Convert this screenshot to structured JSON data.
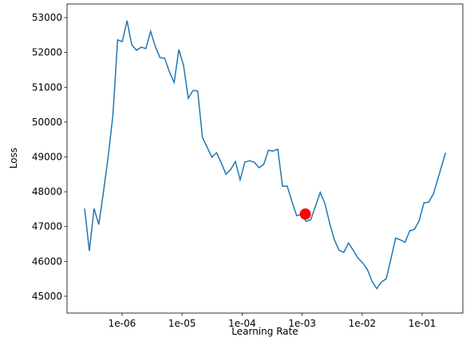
{
  "chart_data": {
    "type": "line",
    "x_label": "Learning Rate",
    "y_label": "Loss",
    "x_scale": "log",
    "x": [
      2.377e-07,
      2.848e-07,
      3.412e-07,
      4.088e-07,
      4.898e-07,
      5.868e-07,
      7.031e-07,
      8.424e-07,
      1.009e-06,
      1.209e-06,
      1.449e-06,
      1.736e-06,
      2.08e-06,
      2.492e-06,
      2.985e-06,
      3.577e-06,
      4.285e-06,
      5.134e-06,
      6.152e-06,
      7.371e-06,
      8.831e-06,
      1.058e-05,
      1.268e-05,
      1.519e-05,
      1.82e-05,
      2.181e-05,
      2.612e-05,
      3.13e-05,
      3.75e-05,
      4.493e-05,
      5.383e-05,
      6.45e-05,
      7.727e-05,
      9.259e-05,
      0.0001109,
      0.0001329,
      0.0001592,
      0.0001908,
      0.0002286,
      0.0002738,
      0.0003281,
      0.0003931,
      0.000471,
      0.0005643,
      0.0006761,
      0.0008101,
      0.0009705,
      0.001163,
      0.001393,
      0.001669,
      0.002,
      0.002396,
      0.002871,
      0.00344,
      0.004121,
      0.004937,
      0.005916,
      0.007087,
      0.008492,
      0.01017,
      0.01219,
      0.01461,
      0.0175,
      0.02097,
      0.02512,
      0.0301,
      0.03606,
      0.0432,
      0.05176,
      0.06202,
      0.0743,
      0.08903,
      0.1067,
      0.1278,
      0.1531,
      0.245
    ],
    "series": [
      {
        "color": "#1f77b4",
        "values": [
          47520,
          46300,
          47520,
          47060,
          48000,
          49010,
          50200,
          52360,
          52310,
          52910,
          52220,
          52060,
          52150,
          52110,
          52610,
          52170,
          51850,
          51830,
          51440,
          51140,
          52080,
          51620,
          50680,
          50910,
          50890,
          49560,
          49280,
          48990,
          49120,
          48830,
          48500,
          48640,
          48870,
          48340,
          48850,
          48890,
          48850,
          48690,
          48780,
          49190,
          49170,
          49220,
          48160,
          48160,
          47720,
          47310,
          47360,
          47150,
          47200,
          47590,
          47980,
          47660,
          47100,
          46620,
          46320,
          46260,
          46530,
          46320,
          46100,
          45960,
          45770,
          45430,
          45220,
          45410,
          45500,
          46070,
          46670,
          46620,
          46550,
          46880,
          46920,
          47170,
          47680,
          47700,
          47930,
          49120
        ]
      }
    ],
    "marker": {
      "x": 0.00113,
      "y": 47360,
      "color": "red"
    },
    "xlim": [
      1.21e-07,
      0.475
    ],
    "ylim": [
      44518,
      53390
    ],
    "xticks": [
      {
        "value": 1e-06,
        "label": "1e-06"
      },
      {
        "value": 1e-05,
        "label": "1e-05"
      },
      {
        "value": 0.0001,
        "label": "1e-04"
      },
      {
        "value": 0.001,
        "label": "1e-03"
      },
      {
        "value": 0.01,
        "label": "1e-02"
      },
      {
        "value": 0.1,
        "label": "1e-01"
      }
    ],
    "yticks": [
      45000,
      46000,
      47000,
      48000,
      49000,
      50000,
      51000,
      52000,
      53000
    ]
  }
}
